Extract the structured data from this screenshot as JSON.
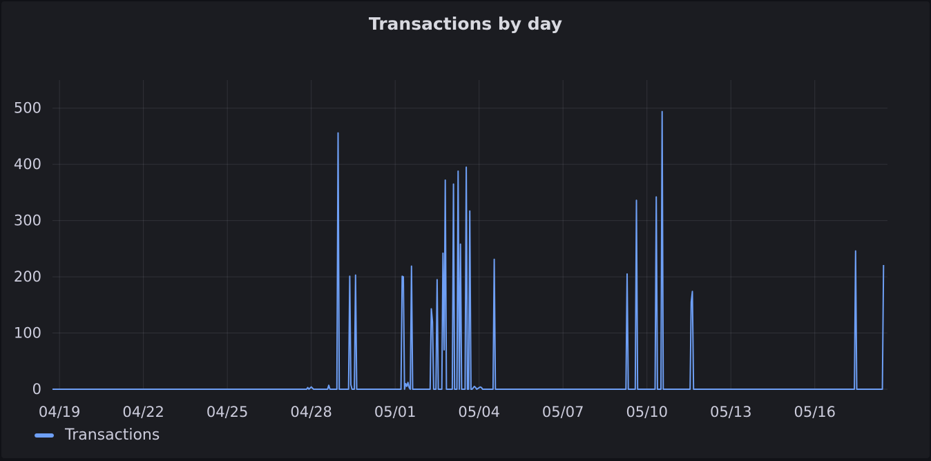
{
  "chart_data": {
    "type": "line",
    "title": "Transactions by day",
    "xlabel": "",
    "ylabel": "",
    "x_ticks": [
      "04/19",
      "04/22",
      "04/25",
      "04/28",
      "05/01",
      "05/04",
      "05/07",
      "05/10",
      "05/13",
      "05/16"
    ],
    "y_ticks": [
      0,
      100,
      200,
      300,
      400,
      500
    ],
    "ylim": [
      0,
      550
    ],
    "xlim": [
      "2024-04-18T18:00",
      "2024-05-18T12:00"
    ],
    "grid": true,
    "legend": "bottom-left",
    "series": [
      {
        "name": "Transactions",
        "color": "#6e9ff5",
        "x": [
          "2024-04-18T18:00",
          "2024-04-27T20:00",
          "2024-04-27T21:00",
          "2024-04-27T22:00",
          "2024-04-28T00:00",
          "2024-04-28T01:00",
          "2024-04-28T02:00",
          "2024-04-28T14:00",
          "2024-04-28T15:00",
          "2024-04-28T16:00",
          "2024-04-28T22:00",
          "2024-04-28T23:00",
          "2024-04-29T00:00",
          "2024-04-29T08:00",
          "2024-04-29T09:00",
          "2024-04-29T10:00",
          "2024-04-29T11:00",
          "2024-04-29T13:00",
          "2024-04-29T14:00",
          "2024-04-29T15:00",
          "2024-05-01T05:00",
          "2024-05-01T06:00",
          "2024-05-01T07:00",
          "2024-05-01T08:00",
          "2024-05-01T09:00",
          "2024-05-01T10:00",
          "2024-05-01T11:00",
          "2024-05-01T12:00",
          "2024-05-01T13:00",
          "2024-05-01T14:00",
          "2024-05-01T15:00",
          "2024-05-02T06:00",
          "2024-05-02T07:00",
          "2024-05-02T08:00",
          "2024-05-02T09:00",
          "2024-05-02T11:00",
          "2024-05-02T12:00",
          "2024-05-02T13:00",
          "2024-05-02T16:00",
          "2024-05-02T17:00",
          "2024-05-02T18:00",
          "2024-05-02T19:00",
          "2024-05-02T20:00",
          "2024-05-03T01:00",
          "2024-05-03T02:00",
          "2024-05-03T03:00",
          "2024-05-03T05:00",
          "2024-05-03T06:00",
          "2024-05-03T07:00",
          "2024-05-03T08:00",
          "2024-05-03T09:00",
          "2024-05-03T12:00",
          "2024-05-03T13:00",
          "2024-05-03T14:00",
          "2024-05-03T15:00",
          "2024-05-03T16:00",
          "2024-05-03T17:00",
          "2024-05-03T18:00",
          "2024-05-03T20:00",
          "2024-05-03T21:00",
          "2024-05-03T22:00",
          "2024-05-04T01:00",
          "2024-05-04T02:00",
          "2024-05-04T03:00",
          "2024-05-04T12:00",
          "2024-05-04T13:00",
          "2024-05-04T14:00",
          "2024-05-09T06:00",
          "2024-05-09T07:00",
          "2024-05-09T08:00",
          "2024-05-09T14:00",
          "2024-05-09T15:00",
          "2024-05-09T16:00",
          "2024-05-10T07:00",
          "2024-05-10T08:00",
          "2024-05-10T09:00",
          "2024-05-10T12:00",
          "2024-05-10T13:00",
          "2024-05-10T14:00",
          "2024-05-11T13:00",
          "2024-05-11T14:00",
          "2024-05-11T15:00",
          "2024-05-11T16:00",
          "2024-05-17T10:00",
          "2024-05-17T11:00",
          "2024-05-17T12:00",
          "2024-05-18T10:00",
          "2024-05-18T11:00"
        ],
        "y": [
          0,
          0,
          3,
          0,
          4,
          2,
          0,
          0,
          7,
          0,
          0,
          456,
          0,
          0,
          201,
          8,
          0,
          0,
          203,
          0,
          0,
          201,
          200,
          0,
          10,
          5,
          12,
          3,
          0,
          219,
          0,
          0,
          143,
          120,
          0,
          0,
          195,
          0,
          0,
          242,
          70,
          372,
          0,
          0,
          365,
          0,
          0,
          388,
          0,
          258,
          0,
          0,
          395,
          0,
          0,
          317,
          0,
          0,
          5,
          3,
          0,
          4,
          3,
          0,
          0,
          231,
          0,
          0,
          205,
          0,
          0,
          336,
          0,
          0,
          342,
          0,
          0,
          494,
          0,
          0,
          155,
          174,
          0,
          0,
          246,
          0,
          0,
          221
        ]
      }
    ]
  }
}
